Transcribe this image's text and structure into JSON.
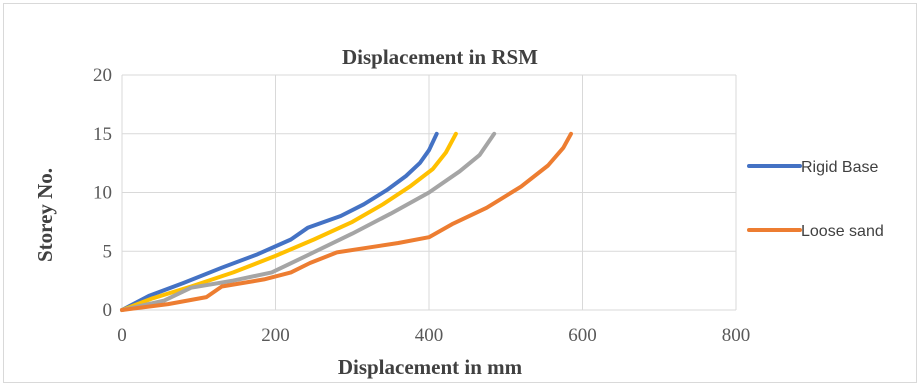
{
  "chart_data": {
    "type": "line",
    "title": "Displacement in RSM",
    "xlabel": "Displacement in mm",
    "ylabel": "Storey No.",
    "xlim": [
      0,
      800
    ],
    "ylim": [
      0,
      20
    ],
    "x_ticks": [
      "0",
      "200",
      "400",
      "600",
      "800"
    ],
    "y_ticks": [
      "0",
      "5",
      "10",
      "15",
      "20"
    ],
    "grid": true,
    "legend_position": "right",
    "series": [
      {
        "name": "Rigid Base",
        "color": "#4472c4",
        "points": [
          [
            0,
            0
          ],
          [
            35,
            1.2
          ],
          [
            80,
            2.3
          ],
          [
            130,
            3.6
          ],
          [
            175,
            4.7
          ],
          [
            220,
            6
          ],
          [
            242,
            7
          ],
          [
            285,
            8
          ],
          [
            315,
            9
          ],
          [
            345,
            10.2
          ],
          [
            370,
            11.4
          ],
          [
            388,
            12.5
          ],
          [
            400,
            13.6
          ],
          [
            410,
            15
          ]
        ]
      },
      {
        "name": "",
        "color": "#ffc000",
        "points": [
          [
            0,
            0
          ],
          [
            40,
            1
          ],
          [
            90,
            2
          ],
          [
            145,
            3.2
          ],
          [
            200,
            4.6
          ],
          [
            250,
            6
          ],
          [
            300,
            7.5
          ],
          [
            340,
            9
          ],
          [
            375,
            10.5
          ],
          [
            405,
            12
          ],
          [
            422,
            13.4
          ],
          [
            435,
            15
          ]
        ]
      },
      {
        "name": "",
        "color": "#a5a5a5",
        "points": [
          [
            0,
            0
          ],
          [
            55,
            0.8
          ],
          [
            90,
            1.9
          ],
          [
            145,
            2.5
          ],
          [
            195,
            3.2
          ],
          [
            240,
            4.6
          ],
          [
            300,
            6.5
          ],
          [
            350,
            8.2
          ],
          [
            400,
            10
          ],
          [
            440,
            11.8
          ],
          [
            466,
            13.2
          ],
          [
            485,
            15
          ]
        ]
      },
      {
        "name": "Loose sand",
        "color": "#ed7d31",
        "points": [
          [
            0,
            0
          ],
          [
            60,
            0.5
          ],
          [
            110,
            1.1
          ],
          [
            130,
            2
          ],
          [
            185,
            2.6
          ],
          [
            220,
            3.2
          ],
          [
            245,
            4
          ],
          [
            280,
            4.9
          ],
          [
            320,
            5.3
          ],
          [
            360,
            5.7
          ],
          [
            400,
            6.2
          ],
          [
            430,
            7.3
          ],
          [
            475,
            8.7
          ],
          [
            520,
            10.5
          ],
          [
            555,
            12.3
          ],
          [
            575,
            13.8
          ],
          [
            585,
            15
          ]
        ]
      }
    ]
  }
}
